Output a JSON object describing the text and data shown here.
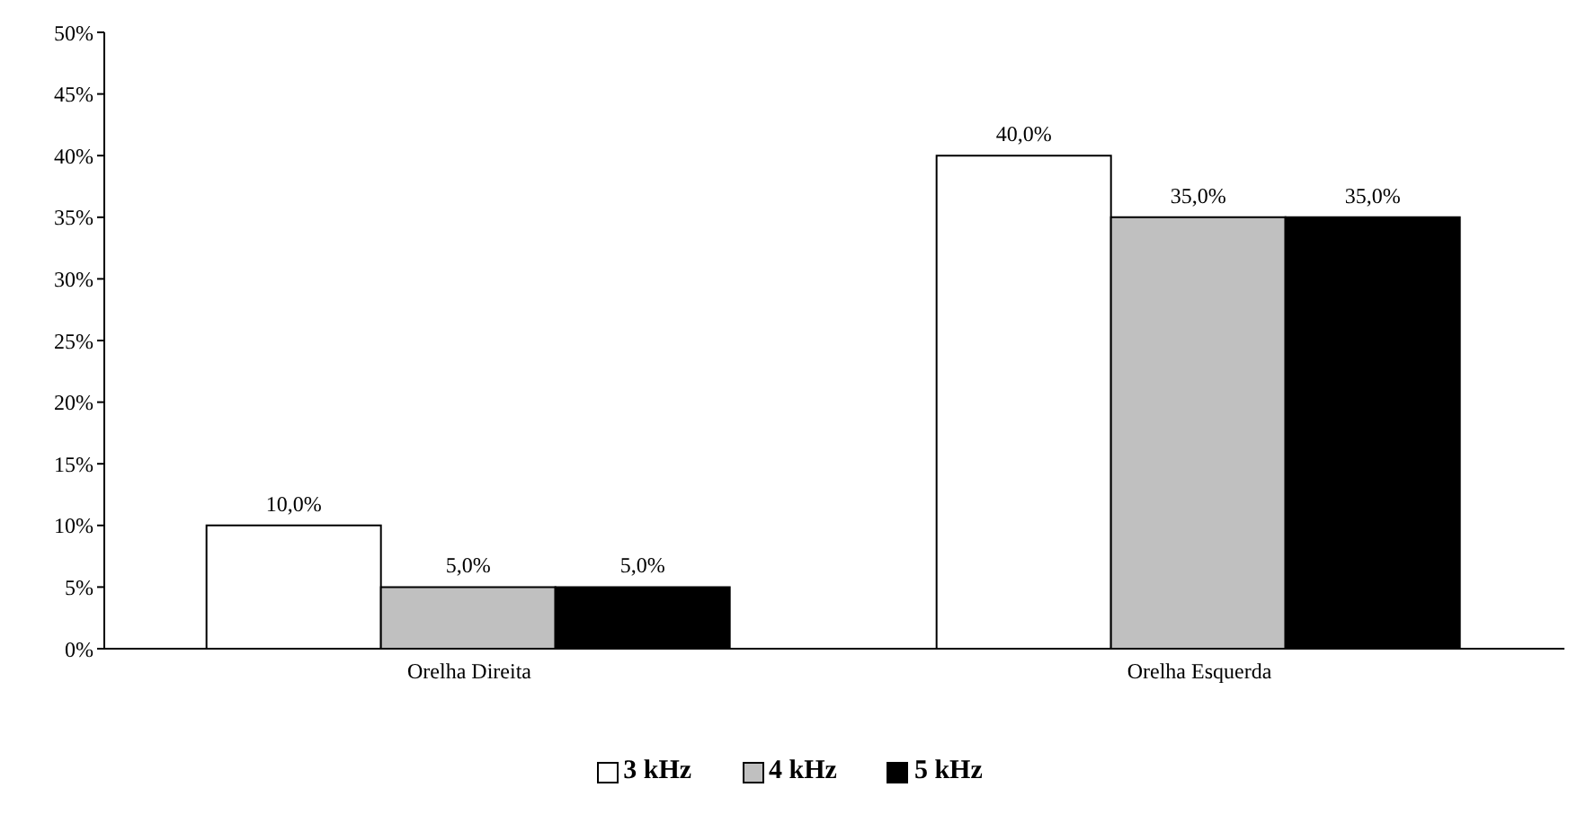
{
  "chart_data": {
    "type": "bar",
    "categories": [
      "Orelha Direita",
      "Orelha Esquerda"
    ],
    "series": [
      {
        "name": "3 kHz",
        "color": "#ffffff",
        "values": [
          10,
          40
        ],
        "value_labels": [
          "10,0%",
          "40,0%"
        ]
      },
      {
        "name": "4 kHz",
        "color": "#c0c0c0",
        "values": [
          5,
          35
        ],
        "value_labels": [
          "5,0%",
          "35,0%"
        ]
      },
      {
        "name": "5 kHz",
        "color": "#000000",
        "values": [
          5,
          35
        ],
        "value_labels": [
          "5,0%",
          "35,0%"
        ]
      }
    ],
    "ylim": [
      0,
      50
    ],
    "yticks": [
      {
        "value": 0,
        "label": "0%"
      },
      {
        "value": 5,
        "label": "5%"
      },
      {
        "value": 10,
        "label": "10%"
      },
      {
        "value": 15,
        "label": "15%"
      },
      {
        "value": 20,
        "label": "20%"
      },
      {
        "value": 25,
        "label": "25%"
      },
      {
        "value": 30,
        "label": "30%"
      },
      {
        "value": 35,
        "label": "35%"
      },
      {
        "value": 40,
        "label": "40%"
      },
      {
        "value": 45,
        "label": "45%"
      },
      {
        "value": 50,
        "label": "50%"
      }
    ],
    "grid": false,
    "legend": "bottom"
  }
}
